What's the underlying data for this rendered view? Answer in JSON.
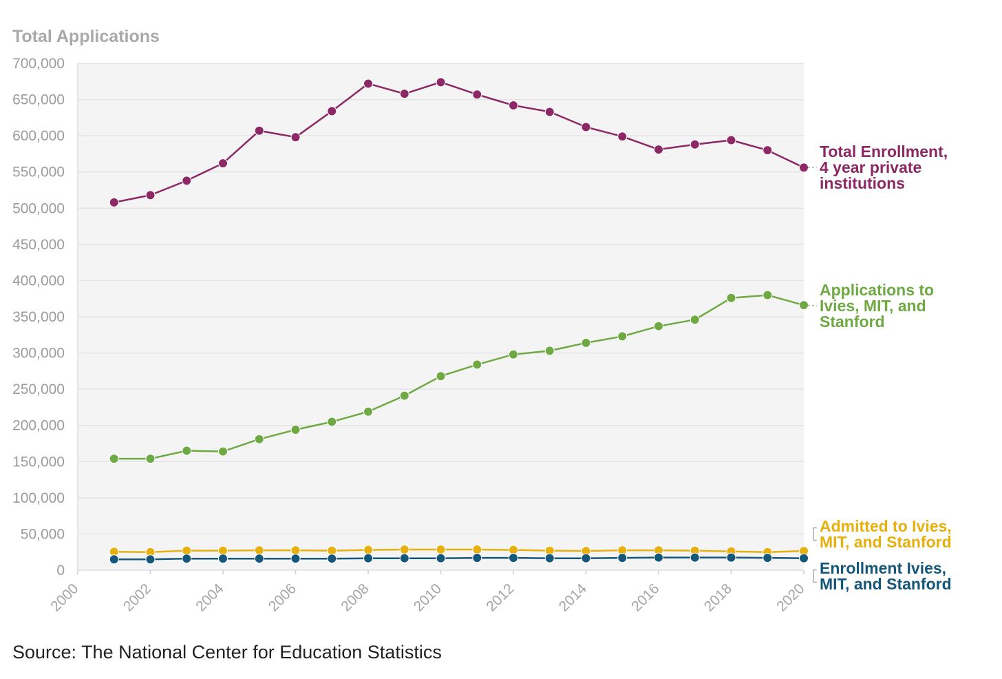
{
  "chart_data": {
    "type": "line",
    "title": "Total Applications",
    "xlabel": "",
    "ylabel": "",
    "xlim": [
      2000,
      2020
    ],
    "ylim": [
      0,
      700000
    ],
    "grid": true,
    "x_ticks": [
      2000,
      2002,
      2004,
      2006,
      2008,
      2010,
      2012,
      2014,
      2016,
      2018,
      2020
    ],
    "y_ticks": [
      0,
      50000,
      100000,
      150000,
      200000,
      250000,
      300000,
      350000,
      400000,
      450000,
      500000,
      550000,
      600000,
      650000,
      700000
    ],
    "x": [
      2001,
      2002,
      2003,
      2004,
      2005,
      2006,
      2007,
      2008,
      2009,
      2010,
      2011,
      2012,
      2013,
      2014,
      2015,
      2016,
      2017,
      2018,
      2019,
      2020
    ],
    "series": [
      {
        "key": "total_enrollment",
        "name": "Total Enrollment, 4 year private institutions",
        "label_lines": [
          "Total Enrollment,",
          "4 year private",
          "institutions"
        ],
        "color": "#8b2865",
        "values": [
          508000,
          518000,
          538000,
          562000,
          607000,
          598000,
          634000,
          672000,
          658000,
          674000,
          657000,
          642000,
          633000,
          612000,
          599000,
          581000,
          588000,
          594000,
          580000,
          556000
        ]
      },
      {
        "key": "applications",
        "name": "Applications to Ivies, MIT, and Stanford",
        "label_lines": [
          "Applications to",
          "Ivies, MIT, and",
          "Stanford"
        ],
        "color": "#6fa943",
        "values": [
          154000,
          154000,
          165000,
          164000,
          181000,
          194000,
          205000,
          219000,
          241000,
          268000,
          284000,
          298000,
          303000,
          314000,
          323000,
          337000,
          346000,
          376000,
          380000,
          366000
        ]
      },
      {
        "key": "admitted",
        "name": "Admitted to Ivies, MIT, and Stanford",
        "label_lines": [
          "Admitted to Ivies,",
          "MIT, and Stanford"
        ],
        "color": "#e7b00f",
        "values": [
          25500,
          25000,
          27000,
          27000,
          27500,
          27500,
          27000,
          28000,
          28500,
          28500,
          28500,
          28000,
          27000,
          26500,
          27500,
          27500,
          27000,
          26000,
          25000,
          26500
        ]
      },
      {
        "key": "enrollment_ivies",
        "name": "Enrollment Ivies, MIT, and Stanford",
        "label_lines": [
          "Enrollment Ivies,",
          "MIT, and Stanford"
        ],
        "color": "#14577a",
        "values": [
          15000,
          15000,
          16000,
          16000,
          16000,
          16000,
          16000,
          16500,
          16500,
          16500,
          17000,
          17000,
          16500,
          16500,
          17000,
          17500,
          17500,
          17500,
          17000,
          16500
        ]
      }
    ]
  },
  "source": "Source: The National Center for Education Statistics"
}
